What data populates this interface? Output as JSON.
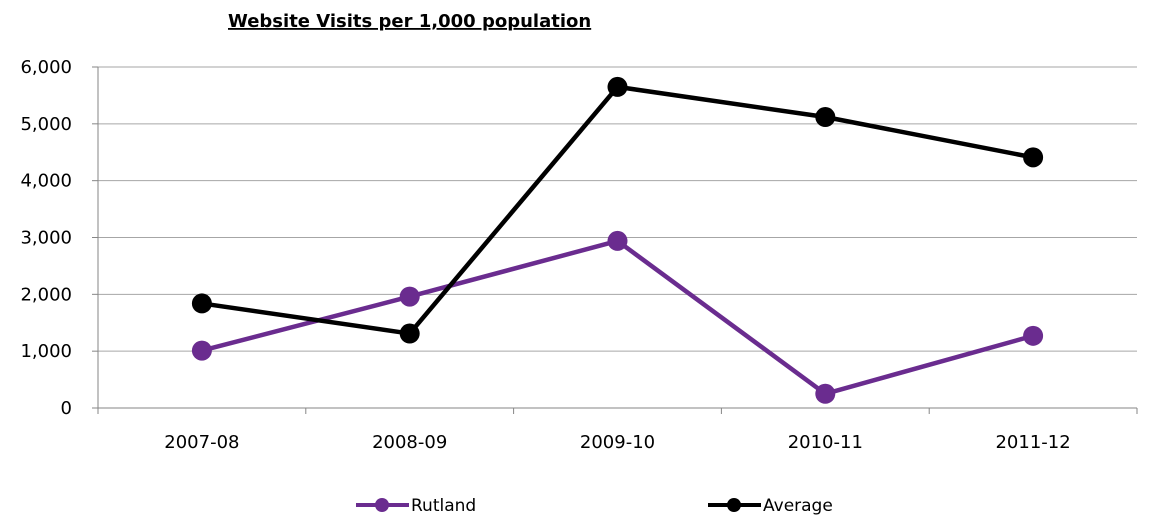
{
  "chart_data": {
    "type": "line",
    "title": "Website Visits per 1,000 population",
    "xlabel": "",
    "ylabel": "",
    "categories": [
      "2007-08",
      "2008-09",
      "2009-10",
      "2010-11",
      "2011-12"
    ],
    "ylim": [
      0,
      6000
    ],
    "yticks": [
      0,
      1000,
      2000,
      3000,
      4000,
      5000,
      6000
    ],
    "ytick_labels": [
      "0",
      "1,000",
      "2,000",
      "3,000",
      "4,000",
      "5,000",
      "6,000"
    ],
    "grid": true,
    "legend_position": "bottom",
    "series": [
      {
        "name": "Rutland",
        "color": "#6a2c8f",
        "values": [
          1010,
          1960,
          2940,
          250,
          1270
        ]
      },
      {
        "name": "Average",
        "color": "#000000",
        "values": [
          1840,
          1310,
          5650,
          5120,
          4410
        ]
      }
    ]
  }
}
